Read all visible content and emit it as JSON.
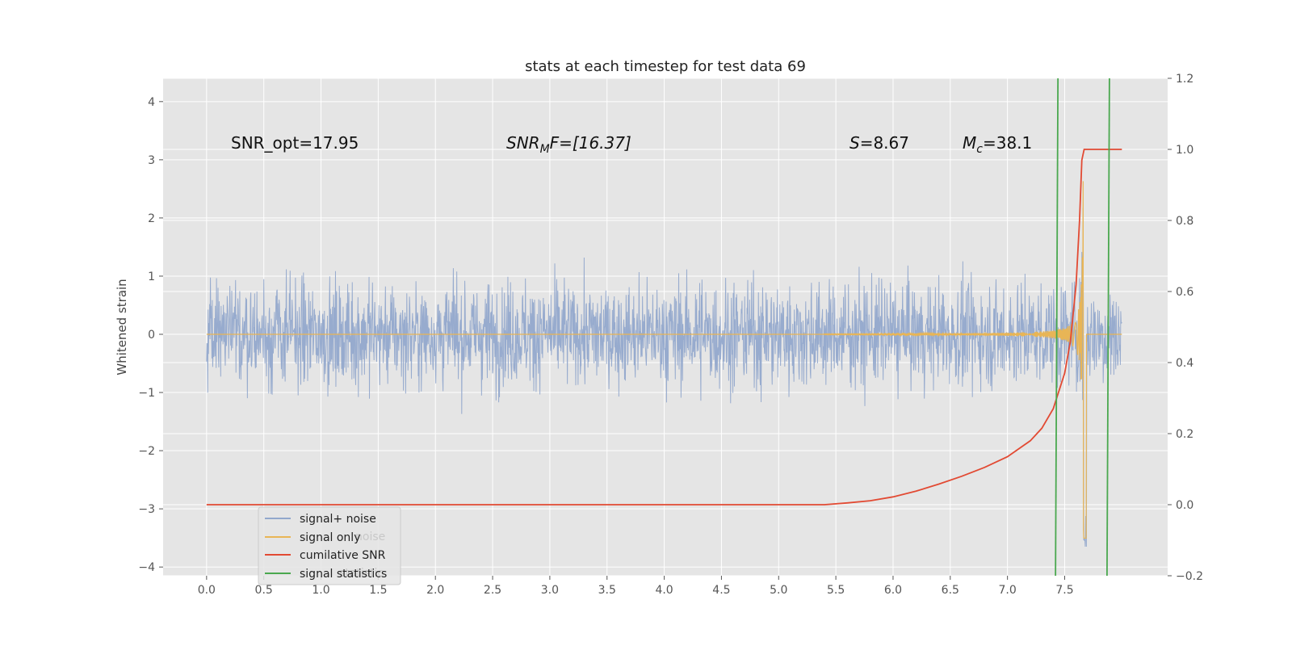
{
  "chart_data": {
    "type": "line",
    "title": "stats at each timestep for test data 69",
    "xlabel": "",
    "ylabel": "Whitened strain",
    "y2label": "",
    "xlim": [
      -0.38,
      8.4
    ],
    "ylim": [
      -4.15,
      4.4
    ],
    "y2lim": [
      -0.2,
      1.2
    ],
    "x_ticks": [
      "0.0",
      "0.5",
      "1.0",
      "1.5",
      "2.0",
      "2.5",
      "3.0",
      "3.5",
      "4.0",
      "4.5",
      "5.0",
      "5.5",
      "6.0",
      "6.5",
      "7.0",
      "7.5"
    ],
    "x_tick_values": [
      0,
      0.5,
      1,
      1.5,
      2,
      2.5,
      3,
      3.5,
      4,
      4.5,
      5,
      5.5,
      6,
      6.5,
      7,
      7.5
    ],
    "y_ticks": [
      "−4",
      "−3",
      "−2",
      "−1",
      "0",
      "1",
      "2",
      "3",
      "4"
    ],
    "y_tick_values": [
      -4,
      -3,
      -2,
      -1,
      0,
      1,
      2,
      3,
      4
    ],
    "y2_ticks": [
      "−0.2",
      "0.0",
      "0.2",
      "0.4",
      "0.6",
      "0.8",
      "1.0",
      "1.2"
    ],
    "y2_tick_values": [
      -0.2,
      0,
      0.2,
      0.4,
      0.6,
      0.8,
      1.0,
      1.2
    ],
    "grid": true,
    "legend_position": "lower-left",
    "annotations": {
      "snr_opt": "SNR_opt=17.95",
      "snr_mf": "SNR",
      "snr_mf_sub": "M",
      "snr_mf_rest": "F=[16.37]",
      "s_label": "S",
      "s_value": "=8.67",
      "mc_label": "M",
      "mc_sub": "c",
      "mc_value": "=38.1"
    },
    "series": [
      {
        "name": "signal+ noise",
        "color": "#92a8cc",
        "axis": "left",
        "description_range": [
          0,
          8.0
        ],
        "envelope": {
          "mean": 0.0,
          "typical_low": -1.6,
          "typical_high": 1.6,
          "max": 2.7,
          "min": -3.65
        }
      },
      {
        "name": "signal only",
        "color": "#e8b556",
        "axis": "left",
        "chirp": {
          "start_x": 5.4,
          "merger_x": 7.65,
          "peak_amplitude": 3.6,
          "end_x": 8.0
        }
      },
      {
        "name": "cumilative SNR",
        "color": "#e24a33",
        "axis": "right",
        "x": [
          0,
          5.4,
          5.6,
          5.8,
          6.0,
          6.2,
          6.4,
          6.6,
          6.8,
          7.0,
          7.2,
          7.3,
          7.4,
          7.5,
          7.55,
          7.6,
          7.63,
          7.65,
          7.67,
          8.0
        ],
        "values": [
          0.0,
          0.0,
          0.005,
          0.011,
          0.022,
          0.038,
          0.058,
          0.08,
          0.105,
          0.135,
          0.18,
          0.215,
          0.27,
          0.37,
          0.46,
          0.62,
          0.8,
          0.97,
          1.0,
          1.0
        ]
      },
      {
        "name": "signal statistics",
        "color": "#4aa84f",
        "axis": "right",
        "vertical_lines": [
          7.42,
          7.87
        ]
      }
    ]
  },
  "legend": {
    "items": [
      {
        "label": "signal+ noise",
        "color": "#92a8cc"
      },
      {
        "label": "signal only",
        "color": "#e8b556"
      },
      {
        "label": "cumilative SNR",
        "color": "#e24a33"
      },
      {
        "label": "signal statistics",
        "color": "#4aa84f"
      }
    ],
    "ghost_labels": [
      "noise",
      "statistic"
    ]
  },
  "colors": {
    "plot_background": "#e5e5e5",
    "grid": "#ffffff",
    "noise": "#92a8cc",
    "signal": "#e8b556",
    "snr": "#e24a33",
    "stats": "#4aa84f"
  }
}
